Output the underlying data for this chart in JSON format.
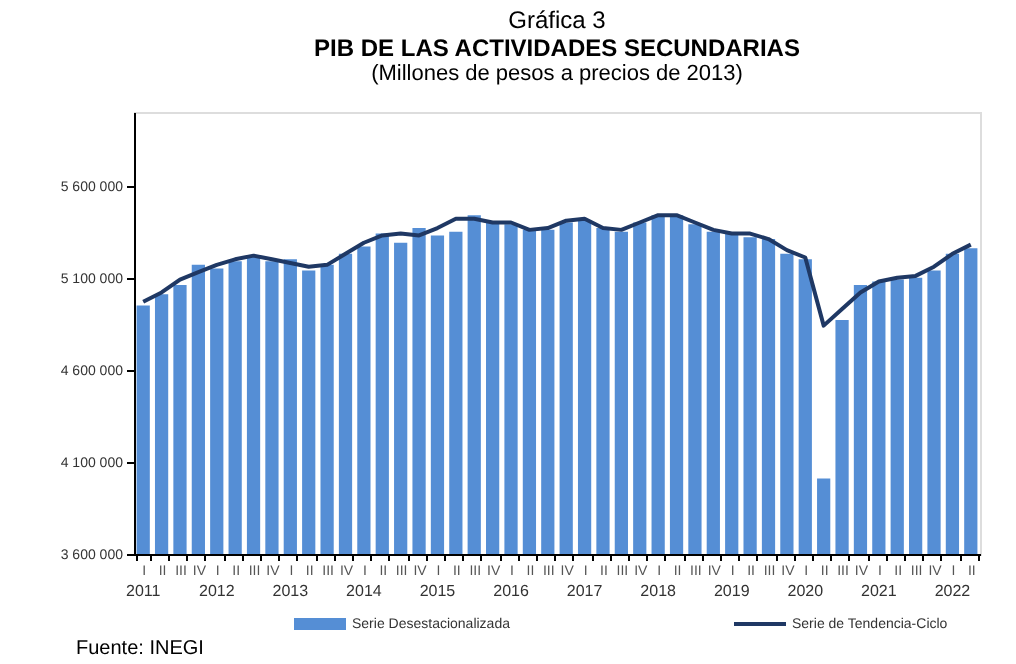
{
  "chart_data": {
    "type": "bar",
    "title": "Gráfica 3",
    "subtitle": "PIB DE LAS ACTIVIDADES SECUNDARIAS",
    "annotations": [
      "(Millones de pesos a precios de 2013)",
      "2011",
      "2012",
      "2013",
      "2014",
      "2015",
      "2016",
      "2017",
      "2018",
      "2019",
      "2020",
      "2021",
      "2022",
      "Fuente: INEGI"
    ],
    "categories": [
      "I",
      "II",
      "III",
      "IV",
      "I",
      "II",
      "III",
      "IV",
      "I",
      "II",
      "III",
      "IV",
      "I",
      "II",
      "III",
      "IV",
      "I",
      "II",
      "III",
      "IV",
      "I",
      "II",
      "III",
      "IV",
      "I",
      "II",
      "III",
      "IV",
      "I",
      "II",
      "III",
      "IV",
      "I",
      "II",
      "III",
      "IV",
      "I",
      "II",
      "III",
      "IV",
      "I",
      "II",
      "III",
      "IV",
      "I",
      "II"
    ],
    "series": [
      {
        "name": "Serie Desestacionalizada",
        "color": "#558ed5",
        "values": [
          4950000,
          5010000,
          5060000,
          5170000,
          5150000,
          5190000,
          5220000,
          5190000,
          5200000,
          5140000,
          5170000,
          5230000,
          5270000,
          5340000,
          5290000,
          5370000,
          5330000,
          5350000,
          5440000,
          5400000,
          5390000,
          5360000,
          5360000,
          5400000,
          5410000,
          5370000,
          5350000,
          5400000,
          5440000,
          5440000,
          5390000,
          5350000,
          5340000,
          5320000,
          5310000,
          5230000,
          5200000,
          4010000,
          4870000,
          5060000,
          5080000,
          5090000,
          5100000,
          5140000,
          5230000,
          5260000
        ]
      },
      {
        "name": "Serie de Tendencia-Ciclo",
        "type": "line",
        "color": "#1f3864",
        "values": [
          4970000,
          5020000,
          5090000,
          5130000,
          5170000,
          5200000,
          5220000,
          5200000,
          5180000,
          5160000,
          5170000,
          5230000,
          5290000,
          5330000,
          5340000,
          5330000,
          5370000,
          5420000,
          5420000,
          5400000,
          5400000,
          5360000,
          5370000,
          5410000,
          5420000,
          5370000,
          5360000,
          5400000,
          5440000,
          5440000,
          5400000,
          5360000,
          5340000,
          5340000,
          5310000,
          5250000,
          5210000,
          4840000,
          4930000,
          5020000,
          5080000,
          5100000,
          5110000,
          5160000,
          5230000,
          5280000
        ]
      }
    ],
    "ylim": [
      3600000,
      6000000
    ],
    "yticks": [
      {
        "value": 3600000,
        "label": "3 600 000"
      },
      {
        "value": 4100000,
        "label": "4 100 000"
      },
      {
        "value": 4600000,
        "label": "4 600 000"
      },
      {
        "value": 5100000,
        "label": "5 100 000"
      },
      {
        "value": 5600000,
        "label": "5 600 000"
      }
    ],
    "legend": "bottom",
    "grid": false
  }
}
